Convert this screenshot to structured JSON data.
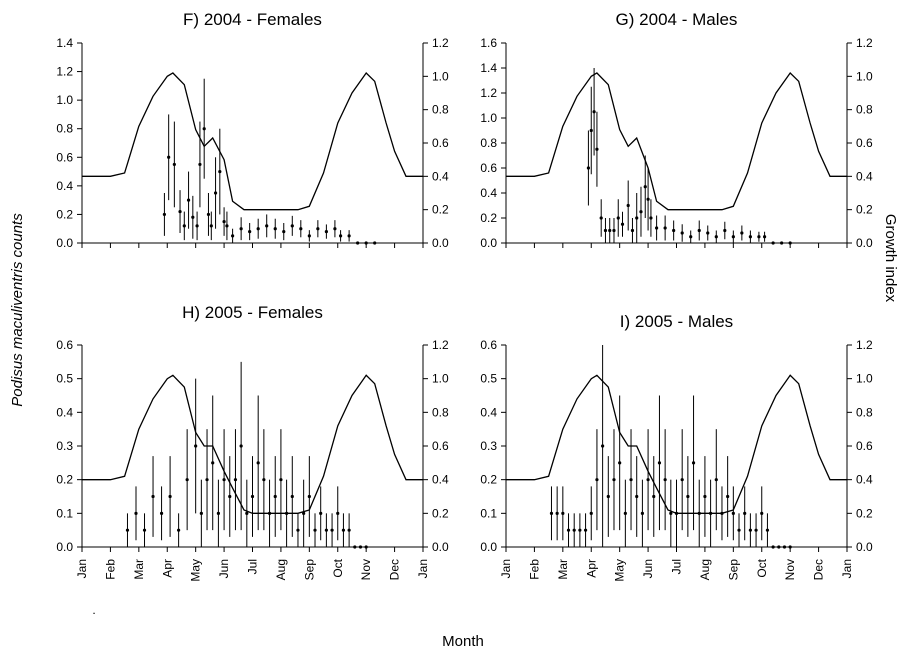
{
  "figure": {
    "ylabel_left": "Podisus maculiventris counts",
    "ylabel_right": "Growth index",
    "xlabel": "Month",
    "months": [
      "Jan",
      "Feb",
      "Mar",
      "Apr",
      "May",
      "Jun",
      "Jul",
      "Aug",
      "Sep",
      "Oct",
      "Nov",
      "Dec",
      "Jan"
    ],
    "stray_mark": "."
  },
  "chart_data": [
    {
      "type": "line",
      "title": "F) 2004 - Females",
      "ylim": [
        0,
        1.4
      ],
      "yticks": [
        "0.0",
        "0.2",
        "0.4",
        "0.6",
        "0.8",
        "1.0",
        "1.2",
        "1.4"
      ],
      "y2lim": [
        0,
        1.2
      ],
      "y2ticks": [
        "0.0",
        "0.2",
        "0.4",
        "0.6",
        "0.8",
        "1.0",
        "1.2"
      ],
      "series": [
        {
          "role": "growth_index_line",
          "x": [
            0,
            1,
            1.5,
            2,
            2.5,
            3,
            3.2,
            3.6,
            4,
            4.3,
            4.6,
            5,
            5.3,
            5.7,
            6,
            6.5,
            7,
            7.3,
            7.6,
            8,
            8.5,
            9,
            9.5,
            10,
            10.3,
            10.7,
            11,
            11.4,
            11.7,
            12
          ],
          "y": [
            0.4,
            0.4,
            0.42,
            0.7,
            0.88,
            1.0,
            1.02,
            0.95,
            0.68,
            0.58,
            0.63,
            0.5,
            0.25,
            0.2,
            0.2,
            0.2,
            0.2,
            0.2,
            0.2,
            0.22,
            0.42,
            0.72,
            0.9,
            1.02,
            0.97,
            0.72,
            0.55,
            0.4,
            0.4,
            0.4
          ]
        },
        {
          "role": "counts",
          "x": [
            2.9,
            3.05,
            3.25,
            3.45,
            3.6,
            3.75,
            3.9,
            4.05,
            4.15,
            4.3,
            4.45,
            4.55,
            4.7,
            4.85,
            5.0,
            5.1,
            5.3,
            5.6,
            5.9,
            6.2,
            6.5,
            6.8,
            7.1,
            7.4,
            7.7,
            8.0,
            8.3,
            8.6,
            8.9,
            9.1,
            9.4,
            9.7,
            10.0,
            10.3
          ],
          "y": [
            0.2,
            0.6,
            0.55,
            0.22,
            0.12,
            0.3,
            0.18,
            0.12,
            0.55,
            0.8,
            0.2,
            0.12,
            0.35,
            0.5,
            0.15,
            0.12,
            0.05,
            0.1,
            0.08,
            0.1,
            0.12,
            0.1,
            0.08,
            0.12,
            0.1,
            0.05,
            0.1,
            0.08,
            0.1,
            0.05,
            0.05,
            0.0,
            0.0,
            0.0
          ],
          "err": [
            0.15,
            0.3,
            0.3,
            0.15,
            0.1,
            0.2,
            0.15,
            0.1,
            0.3,
            0.35,
            0.15,
            0.1,
            0.25,
            0.3,
            0.1,
            0.1,
            0.05,
            0.08,
            0.06,
            0.07,
            0.08,
            0.07,
            0.06,
            0.07,
            0.06,
            0.04,
            0.06,
            0.05,
            0.06,
            0.04,
            0.04,
            0,
            0,
            0
          ]
        }
      ]
    },
    {
      "type": "line",
      "title": "G) 2004 - Males",
      "ylim": [
        0,
        1.6
      ],
      "yticks": [
        "0.0",
        "0.2",
        "0.4",
        "0.6",
        "0.8",
        "1.0",
        "1.2",
        "1.4",
        "1.6"
      ],
      "y2lim": [
        0,
        1.2
      ],
      "y2ticks": [
        "0.0",
        "0.2",
        "0.4",
        "0.6",
        "0.8",
        "1.0",
        "1.2"
      ],
      "series": [
        {
          "role": "growth_index_line",
          "x": [
            0,
            1,
            1.5,
            2,
            2.5,
            3,
            3.2,
            3.6,
            4,
            4.3,
            4.6,
            5,
            5.3,
            5.7,
            6,
            6.5,
            7,
            7.3,
            7.6,
            8,
            8.5,
            9,
            9.5,
            10,
            10.3,
            10.7,
            11,
            11.4,
            11.7,
            12
          ],
          "y": [
            0.4,
            0.4,
            0.42,
            0.7,
            0.88,
            1.0,
            1.02,
            0.95,
            0.68,
            0.58,
            0.63,
            0.45,
            0.25,
            0.2,
            0.2,
            0.2,
            0.2,
            0.2,
            0.2,
            0.22,
            0.42,
            0.72,
            0.9,
            1.02,
            0.97,
            0.72,
            0.55,
            0.4,
            0.4,
            0.4
          ]
        },
        {
          "role": "counts",
          "x": [
            2.9,
            3.0,
            3.1,
            3.2,
            3.35,
            3.5,
            3.65,
            3.8,
            3.95,
            4.1,
            4.3,
            4.45,
            4.6,
            4.75,
            4.9,
            5.0,
            5.1,
            5.3,
            5.6,
            5.9,
            6.2,
            6.5,
            6.8,
            7.1,
            7.4,
            7.7,
            8.0,
            8.3,
            8.6,
            8.9,
            9.1,
            9.4,
            9.7,
            10.0
          ],
          "y": [
            0.6,
            0.9,
            1.05,
            0.75,
            0.2,
            0.1,
            0.1,
            0.1,
            0.2,
            0.15,
            0.3,
            0.1,
            0.2,
            0.25,
            0.45,
            0.35,
            0.2,
            0.12,
            0.12,
            0.1,
            0.08,
            0.05,
            0.1,
            0.08,
            0.05,
            0.1,
            0.05,
            0.08,
            0.05,
            0.05,
            0.05,
            0.0,
            0.0,
            0.0
          ],
          "err": [
            0.3,
            0.35,
            0.35,
            0.3,
            0.15,
            0.1,
            0.1,
            0.1,
            0.15,
            0.1,
            0.2,
            0.1,
            0.2,
            0.2,
            0.25,
            0.25,
            0.15,
            0.1,
            0.1,
            0.08,
            0.07,
            0.05,
            0.08,
            0.06,
            0.05,
            0.07,
            0.05,
            0.06,
            0.05,
            0.04,
            0.04,
            0,
            0,
            0
          ]
        }
      ]
    },
    {
      "type": "line",
      "title": "H) 2005 - Females",
      "ylim": [
        0,
        0.6
      ],
      "yticks": [
        "0.0",
        "0.1",
        "0.2",
        "0.3",
        "0.4",
        "0.5",
        "0.6"
      ],
      "y2lim": [
        0,
        1.2
      ],
      "y2ticks": [
        "0.0",
        "0.2",
        "0.4",
        "0.6",
        "0.8",
        "1.0",
        "1.2"
      ],
      "series": [
        {
          "role": "growth_index_line",
          "x": [
            0,
            1,
            1.5,
            2,
            2.5,
            3,
            3.2,
            3.6,
            4,
            4.3,
            4.6,
            5,
            5.3,
            5.7,
            6,
            6.5,
            7,
            7.3,
            7.6,
            8,
            8.5,
            9,
            9.5,
            10,
            10.3,
            10.7,
            11,
            11.4,
            11.7,
            12
          ],
          "y": [
            0.4,
            0.4,
            0.42,
            0.7,
            0.88,
            1.0,
            1.02,
            0.95,
            0.68,
            0.6,
            0.6,
            0.45,
            0.35,
            0.22,
            0.2,
            0.2,
            0.2,
            0.2,
            0.2,
            0.22,
            0.42,
            0.72,
            0.9,
            1.02,
            0.97,
            0.72,
            0.55,
            0.4,
            0.4,
            0.4
          ]
        },
        {
          "role": "counts",
          "x": [
            1.6,
            1.9,
            2.2,
            2.5,
            2.8,
            3.1,
            3.4,
            3.7,
            4.0,
            4.2,
            4.4,
            4.6,
            4.8,
            5.0,
            5.2,
            5.4,
            5.6,
            5.8,
            6.0,
            6.2,
            6.4,
            6.6,
            6.8,
            7.0,
            7.2,
            7.4,
            7.6,
            7.8,
            8.0,
            8.2,
            8.4,
            8.6,
            8.8,
            9.0,
            9.2,
            9.4,
            9.6,
            9.8,
            10.0
          ],
          "y": [
            0.05,
            0.1,
            0.05,
            0.15,
            0.1,
            0.15,
            0.05,
            0.2,
            0.3,
            0.1,
            0.2,
            0.25,
            0.1,
            0.2,
            0.15,
            0.2,
            0.3,
            0.1,
            0.15,
            0.25,
            0.2,
            0.1,
            0.15,
            0.2,
            0.1,
            0.15,
            0.05,
            0.1,
            0.15,
            0.05,
            0.1,
            0.05,
            0.05,
            0.1,
            0.05,
            0.05,
            0.0,
            0.0,
            0.0
          ],
          "err": [
            0.05,
            0.08,
            0.05,
            0.12,
            0.08,
            0.12,
            0.05,
            0.15,
            0.2,
            0.1,
            0.15,
            0.2,
            0.1,
            0.15,
            0.12,
            0.15,
            0.25,
            0.1,
            0.12,
            0.2,
            0.15,
            0.1,
            0.12,
            0.15,
            0.1,
            0.12,
            0.05,
            0.1,
            0.12,
            0.05,
            0.08,
            0.05,
            0.05,
            0.08,
            0.05,
            0.05,
            0,
            0,
            0
          ]
        }
      ]
    },
    {
      "type": "line",
      "title": "I) 2005 - Males",
      "ylim": [
        0,
        0.6
      ],
      "yticks": [
        "0.0",
        "0.1",
        "0.2",
        "0.3",
        "0.4",
        "0.5",
        "0.6"
      ],
      "y2lim": [
        0,
        1.2
      ],
      "y2ticks": [
        "0.0",
        "0.2",
        "0.4",
        "0.6",
        "0.8",
        "1.0",
        "1.2"
      ],
      "series": [
        {
          "role": "growth_index_line",
          "x": [
            0,
            1,
            1.5,
            2,
            2.5,
            3,
            3.2,
            3.6,
            4,
            4.3,
            4.6,
            5,
            5.3,
            5.7,
            6,
            6.5,
            7,
            7.3,
            7.6,
            8,
            8.5,
            9,
            9.5,
            10,
            10.3,
            10.7,
            11,
            11.4,
            11.7,
            12
          ],
          "y": [
            0.4,
            0.4,
            0.42,
            0.7,
            0.88,
            1.0,
            1.02,
            0.95,
            0.68,
            0.6,
            0.6,
            0.45,
            0.35,
            0.22,
            0.2,
            0.2,
            0.2,
            0.2,
            0.2,
            0.22,
            0.42,
            0.72,
            0.9,
            1.02,
            0.97,
            0.72,
            0.55,
            0.4,
            0.4,
            0.4
          ]
        },
        {
          "role": "counts",
          "x": [
            1.6,
            1.8,
            2.0,
            2.2,
            2.4,
            2.6,
            2.8,
            3.0,
            3.2,
            3.4,
            3.6,
            3.8,
            4.0,
            4.2,
            4.4,
            4.6,
            4.8,
            5.0,
            5.2,
            5.4,
            5.6,
            5.8,
            6.0,
            6.2,
            6.4,
            6.6,
            6.8,
            7.0,
            7.2,
            7.4,
            7.6,
            7.8,
            8.0,
            8.2,
            8.4,
            8.6,
            8.8,
            9.0,
            9.2,
            9.4,
            9.6,
            9.8,
            10.0
          ],
          "y": [
            0.1,
            0.1,
            0.1,
            0.05,
            0.05,
            0.05,
            0.05,
            0.1,
            0.2,
            0.3,
            0.15,
            0.2,
            0.25,
            0.1,
            0.2,
            0.15,
            0.1,
            0.2,
            0.15,
            0.25,
            0.2,
            0.1,
            0.1,
            0.2,
            0.15,
            0.25,
            0.1,
            0.15,
            0.1,
            0.2,
            0.1,
            0.15,
            0.1,
            0.05,
            0.1,
            0.05,
            0.05,
            0.1,
            0.05,
            0.0,
            0.0,
            0.0,
            0.0
          ],
          "err": [
            0.08,
            0.08,
            0.08,
            0.05,
            0.05,
            0.05,
            0.05,
            0.08,
            0.15,
            0.3,
            0.12,
            0.15,
            0.2,
            0.1,
            0.15,
            0.12,
            0.1,
            0.15,
            0.12,
            0.2,
            0.15,
            0.1,
            0.1,
            0.15,
            0.12,
            0.2,
            0.1,
            0.12,
            0.1,
            0.15,
            0.08,
            0.12,
            0.08,
            0.05,
            0.08,
            0.05,
            0.05,
            0.08,
            0.05,
            0,
            0,
            0,
            0
          ]
        }
      ]
    }
  ]
}
